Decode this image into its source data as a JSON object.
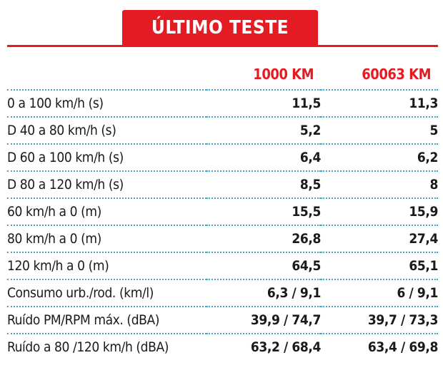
{
  "title": "ÚLTIMO TESTE",
  "columns": [
    "1000 KM",
    "60063 KM"
  ],
  "rows": [
    {
      "label": "0 a 100 km/h (s)",
      "v1": "11,5",
      "v2": "11,3"
    },
    {
      "label": "D 40 a 80 km/h (s)",
      "v1": "5,2",
      "v2": "5"
    },
    {
      "label": "D 60 a 100 km/h (s)",
      "v1": "6,4",
      "v2": "6,2"
    },
    {
      "label": "D 80 a 120 km/h (s)",
      "v1": "8,5",
      "v2": "8"
    },
    {
      "label": "60 km/h a 0 (m)",
      "v1": "15,5",
      "v2": "15,9"
    },
    {
      "label": "80 km/h a 0 (m)",
      "v1": "26,8",
      "v2": "27,4"
    },
    {
      "label": "120 km/h a 0 (m)",
      "v1": "64,5",
      "v2": "65,1"
    },
    {
      "label": "Consumo urb./rod. (km/l)",
      "v1": "6,3 / 9,1",
      "v2": "6 / 9,1"
    },
    {
      "label": "Ruído PM/RPM máx. (dBA)",
      "v1": "39,9 / 74,7",
      "v2": "39,7 / 73,3"
    },
    {
      "label": "Ruído a 80 /120 km/h (dBA)",
      "v1": "63,2 / 68,4",
      "v2": "63,4 / 69,8"
    }
  ],
  "colors": {
    "accent": "#e31b23",
    "divider": "#4aa6c8",
    "text": "#1a1a1a"
  }
}
